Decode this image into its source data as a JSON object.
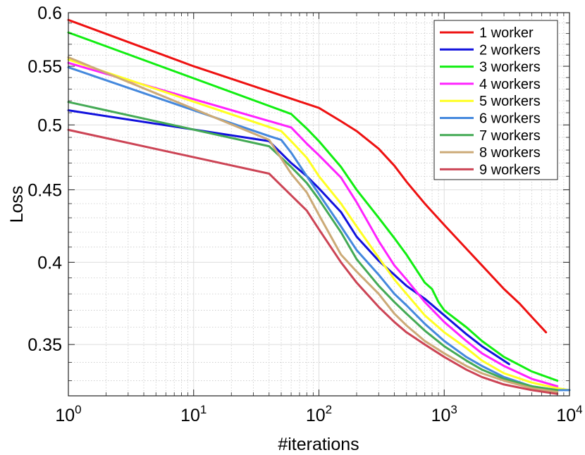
{
  "chart_data": {
    "type": "line",
    "xscale": "log",
    "yscale": "log",
    "xlabel": "#iterations",
    "ylabel": "Loss",
    "xlim": [
      1,
      10000
    ],
    "ylim": [
      0.322,
      0.6
    ],
    "grid": true,
    "legend_position": "top-right",
    "x_ticks": [
      {
        "base": "10",
        "exp": "0"
      },
      {
        "base": "10",
        "exp": "1"
      },
      {
        "base": "10",
        "exp": "2"
      },
      {
        "base": "10",
        "exp": "3"
      },
      {
        "base": "10",
        "exp": "4"
      }
    ],
    "y_ticks": [
      "0.6",
      "0.55",
      "0.5",
      "0.45",
      "0.4",
      "0.35"
    ],
    "series": [
      {
        "name": "1 worker",
        "color": "#ee1111",
        "points": [
          [
            1,
            0.593
          ],
          [
            10,
            0.55
          ],
          [
            40,
            0.528
          ],
          [
            100,
            0.514
          ],
          [
            150,
            0.503
          ],
          [
            200,
            0.495
          ],
          [
            300,
            0.481
          ],
          [
            400,
            0.468
          ],
          [
            500,
            0.456
          ],
          [
            700,
            0.44
          ],
          [
            1000,
            0.425
          ],
          [
            1500,
            0.409
          ],
          [
            2000,
            0.398
          ],
          [
            3000,
            0.383
          ],
          [
            4000,
            0.374
          ],
          [
            5000,
            0.366
          ],
          [
            6500,
            0.357
          ]
        ]
      },
      {
        "name": "2 workers",
        "color": "#1111dd",
        "points": [
          [
            1,
            0.512
          ],
          [
            40,
            0.487
          ],
          [
            60,
            0.47
          ],
          [
            80,
            0.46
          ],
          [
            100,
            0.451
          ],
          [
            150,
            0.434
          ],
          [
            200,
            0.417
          ],
          [
            300,
            0.401
          ],
          [
            400,
            0.392
          ],
          [
            500,
            0.385
          ],
          [
            700,
            0.377
          ],
          [
            1000,
            0.367
          ],
          [
            1500,
            0.356
          ],
          [
            2000,
            0.349
          ],
          [
            3300,
            0.339
          ]
        ]
      },
      {
        "name": "3 workers",
        "color": "#11ee11",
        "points": [
          [
            1,
            0.581
          ],
          [
            60,
            0.509
          ],
          [
            80,
            0.497
          ],
          [
            100,
            0.487
          ],
          [
            150,
            0.467
          ],
          [
            200,
            0.45
          ],
          [
            300,
            0.43
          ],
          [
            400,
            0.416
          ],
          [
            500,
            0.405
          ],
          [
            700,
            0.387
          ],
          [
            800,
            0.383
          ],
          [
            900,
            0.375
          ],
          [
            1000,
            0.37
          ],
          [
            1500,
            0.36
          ],
          [
            2000,
            0.352
          ],
          [
            3000,
            0.343
          ],
          [
            5000,
            0.335
          ],
          [
            8000,
            0.33
          ]
        ]
      },
      {
        "name": "4 workers",
        "color": "#ff22ff",
        "points": [
          [
            1,
            0.553
          ],
          [
            60,
            0.498
          ],
          [
            80,
            0.485
          ],
          [
            100,
            0.476
          ],
          [
            150,
            0.459
          ],
          [
            200,
            0.441
          ],
          [
            300,
            0.414
          ],
          [
            400,
            0.398
          ],
          [
            500,
            0.389
          ],
          [
            700,
            0.375
          ],
          [
            1000,
            0.363
          ],
          [
            1500,
            0.352
          ],
          [
            2000,
            0.345
          ],
          [
            3000,
            0.338
          ],
          [
            5000,
            0.331
          ],
          [
            8000,
            0.327
          ]
        ]
      },
      {
        "name": "5 workers",
        "color": "#ffff22",
        "points": [
          [
            1,
            0.556
          ],
          [
            50,
            0.495
          ],
          [
            60,
            0.487
          ],
          [
            80,
            0.474
          ],
          [
            100,
            0.46
          ],
          [
            150,
            0.44
          ],
          [
            200,
            0.424
          ],
          [
            300,
            0.403
          ],
          [
            400,
            0.389
          ],
          [
            500,
            0.38
          ],
          [
            700,
            0.367
          ],
          [
            1000,
            0.357
          ],
          [
            1500,
            0.348
          ],
          [
            2000,
            0.341
          ],
          [
            3000,
            0.334
          ],
          [
            5000,
            0.329
          ],
          [
            8000,
            0.326
          ],
          [
            10000,
            0.325
          ]
        ]
      },
      {
        "name": "6 workers",
        "color": "#4488dd",
        "points": [
          [
            1,
            0.549
          ],
          [
            40,
            0.491
          ],
          [
            50,
            0.488
          ],
          [
            60,
            0.478
          ],
          [
            80,
            0.46
          ],
          [
            100,
            0.447
          ],
          [
            150,
            0.424
          ],
          [
            200,
            0.408
          ],
          [
            300,
            0.392
          ],
          [
            400,
            0.38
          ],
          [
            500,
            0.373
          ],
          [
            700,
            0.362
          ],
          [
            1000,
            0.352
          ],
          [
            1500,
            0.343
          ],
          [
            2000,
            0.338
          ],
          [
            3000,
            0.332
          ],
          [
            5000,
            0.327
          ],
          [
            8000,
            0.325
          ],
          [
            10000,
            0.325
          ]
        ]
      },
      {
        "name": "7 workers",
        "color": "#44aa55",
        "points": [
          [
            1,
            0.519
          ],
          [
            40,
            0.483
          ],
          [
            60,
            0.467
          ],
          [
            80,
            0.455
          ],
          [
            100,
            0.443
          ],
          [
            150,
            0.42
          ],
          [
            200,
            0.402
          ],
          [
            300,
            0.385
          ],
          [
            400,
            0.375
          ],
          [
            500,
            0.368
          ],
          [
            700,
            0.358
          ],
          [
            1000,
            0.349
          ],
          [
            1500,
            0.341
          ],
          [
            2000,
            0.336
          ],
          [
            3000,
            0.331
          ],
          [
            5000,
            0.327
          ],
          [
            8000,
            0.325
          ]
        ]
      },
      {
        "name": "8 workers",
        "color": "#ccaa77",
        "points": [
          [
            1,
            0.558
          ],
          [
            40,
            0.488
          ],
          [
            60,
            0.462
          ],
          [
            80,
            0.448
          ],
          [
            100,
            0.432
          ],
          [
            150,
            0.405
          ],
          [
            200,
            0.394
          ],
          [
            300,
            0.38
          ],
          [
            400,
            0.368
          ],
          [
            500,
            0.361
          ],
          [
            700,
            0.352
          ],
          [
            1000,
            0.345
          ],
          [
            1500,
            0.338
          ],
          [
            2000,
            0.334
          ],
          [
            3000,
            0.33
          ],
          [
            5000,
            0.326
          ],
          [
            8000,
            0.324
          ]
        ]
      },
      {
        "name": "9 workers",
        "color": "#cc4455",
        "points": [
          [
            1,
            0.496
          ],
          [
            40,
            0.462
          ],
          [
            60,
            0.446
          ],
          [
            80,
            0.435
          ],
          [
            100,
            0.422
          ],
          [
            150,
            0.4
          ],
          [
            200,
            0.387
          ],
          [
            300,
            0.372
          ],
          [
            400,
            0.363
          ],
          [
            500,
            0.357
          ],
          [
            700,
            0.35
          ],
          [
            1000,
            0.343
          ],
          [
            1500,
            0.336
          ],
          [
            2000,
            0.332
          ],
          [
            3000,
            0.328
          ],
          [
            5000,
            0.325
          ],
          [
            8000,
            0.323
          ]
        ]
      }
    ]
  }
}
